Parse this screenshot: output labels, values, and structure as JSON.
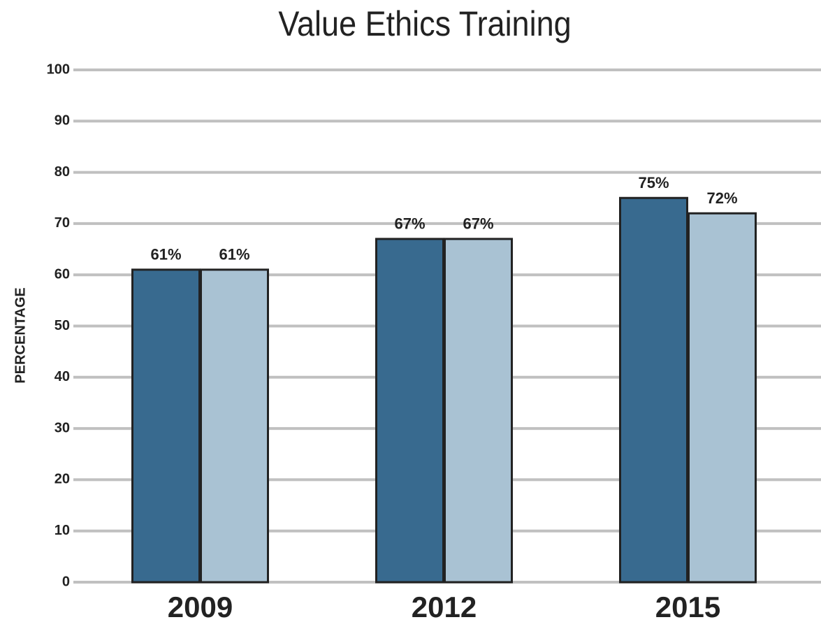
{
  "chart_data": {
    "type": "bar",
    "title": "Value Ethics Training",
    "y_label": "PERCENTAGE",
    "categories": [
      "2009",
      "2012",
      "2015"
    ],
    "series": [
      {
        "color": "#386a8f",
        "values": [
          61,
          67,
          75
        ],
        "value_labels": [
          "61%",
          "67%",
          "75%"
        ]
      },
      {
        "color": "#a9c2d3",
        "values": [
          61,
          67,
          72
        ],
        "value_labels": [
          "61%",
          "67%",
          "72%"
        ]
      }
    ],
    "ylim": [
      0,
      100
    ],
    "yticks": [
      0,
      10,
      20,
      30,
      40,
      50,
      60,
      70,
      80,
      90,
      100
    ],
    "grid": true
  }
}
